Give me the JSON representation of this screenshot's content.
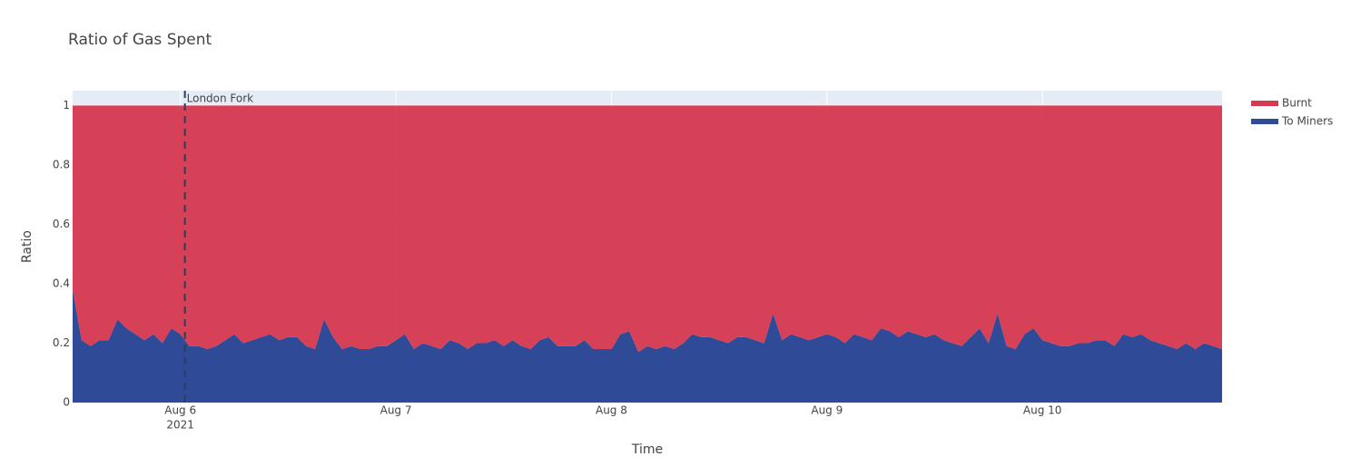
{
  "chart_data": {
    "type": "stacked_area",
    "title": "Ratio of Gas Spent",
    "xlabel": "Time",
    "ylabel": "Ratio",
    "x": [
      "2021-08-05 12:00",
      "2021-08-05 13:00",
      "2021-08-05 14:00",
      "2021-08-05 15:00",
      "2021-08-05 16:00",
      "2021-08-05 17:00",
      "2021-08-05 18:00",
      "2021-08-05 19:00",
      "2021-08-05 20:00",
      "2021-08-05 21:00",
      "2021-08-05 22:00",
      "2021-08-05 23:00",
      "2021-08-06 00:00",
      "2021-08-06 01:00",
      "2021-08-06 02:00",
      "2021-08-06 03:00",
      "2021-08-06 04:00",
      "2021-08-06 05:00",
      "2021-08-06 06:00",
      "2021-08-06 07:00",
      "2021-08-06 08:00",
      "2021-08-06 09:00",
      "2021-08-06 10:00",
      "2021-08-06 11:00",
      "2021-08-06 12:00",
      "2021-08-06 13:00",
      "2021-08-06 14:00",
      "2021-08-06 15:00",
      "2021-08-06 16:00",
      "2021-08-06 17:00",
      "2021-08-06 18:00",
      "2021-08-06 19:00",
      "2021-08-06 20:00",
      "2021-08-06 21:00",
      "2021-08-06 22:00",
      "2021-08-06 23:00",
      "2021-08-07 00:00",
      "2021-08-07 01:00",
      "2021-08-07 02:00",
      "2021-08-07 03:00",
      "2021-08-07 04:00",
      "2021-08-07 05:00",
      "2021-08-07 06:00",
      "2021-08-07 07:00",
      "2021-08-07 08:00",
      "2021-08-07 09:00",
      "2021-08-07 10:00",
      "2021-08-07 11:00",
      "2021-08-07 12:00",
      "2021-08-07 13:00",
      "2021-08-07 14:00",
      "2021-08-07 15:00",
      "2021-08-07 16:00",
      "2021-08-07 17:00",
      "2021-08-07 18:00",
      "2021-08-07 19:00",
      "2021-08-07 20:00",
      "2021-08-07 21:00",
      "2021-08-07 22:00",
      "2021-08-07 23:00",
      "2021-08-08 00:00",
      "2021-08-08 01:00",
      "2021-08-08 02:00",
      "2021-08-08 03:00",
      "2021-08-08 04:00",
      "2021-08-08 05:00",
      "2021-08-08 06:00",
      "2021-08-08 07:00",
      "2021-08-08 08:00",
      "2021-08-08 09:00",
      "2021-08-08 10:00",
      "2021-08-08 11:00",
      "2021-08-08 12:00",
      "2021-08-08 13:00",
      "2021-08-08 14:00",
      "2021-08-08 15:00",
      "2021-08-08 16:00",
      "2021-08-08 17:00",
      "2021-08-08 18:00",
      "2021-08-08 19:00",
      "2021-08-08 20:00",
      "2021-08-08 21:00",
      "2021-08-08 22:00",
      "2021-08-08 23:00",
      "2021-08-09 00:00",
      "2021-08-09 01:00",
      "2021-08-09 02:00",
      "2021-08-09 03:00",
      "2021-08-09 04:00",
      "2021-08-09 05:00",
      "2021-08-09 06:00",
      "2021-08-09 07:00",
      "2021-08-09 08:00",
      "2021-08-09 09:00",
      "2021-08-09 10:00",
      "2021-08-09 11:00",
      "2021-08-09 12:00",
      "2021-08-09 13:00",
      "2021-08-09 14:00",
      "2021-08-09 15:00",
      "2021-08-09 16:00",
      "2021-08-09 17:00",
      "2021-08-09 18:00",
      "2021-08-09 19:00",
      "2021-08-09 20:00",
      "2021-08-09 21:00",
      "2021-08-09 22:00",
      "2021-08-09 23:00",
      "2021-08-10 00:00",
      "2021-08-10 01:00",
      "2021-08-10 02:00",
      "2021-08-10 03:00",
      "2021-08-10 04:00",
      "2021-08-10 05:00",
      "2021-08-10 06:00",
      "2021-08-10 07:00",
      "2021-08-10 08:00",
      "2021-08-10 09:00",
      "2021-08-10 10:00",
      "2021-08-10 11:00",
      "2021-08-10 12:00",
      "2021-08-10 13:00",
      "2021-08-10 14:00",
      "2021-08-10 15:00",
      "2021-08-10 16:00",
      "2021-08-10 17:00",
      "2021-08-10 18:00",
      "2021-08-10 19:00",
      "2021-08-10 20:00"
    ],
    "series": [
      {
        "name": "Burnt",
        "color": "#d6384f",
        "values": [
          0.62,
          0.79,
          0.81,
          0.79,
          0.79,
          0.72,
          0.75,
          0.77,
          0.79,
          0.77,
          0.8,
          0.75,
          0.77,
          0.81,
          0.81,
          0.82,
          0.81,
          0.79,
          0.77,
          0.8,
          0.79,
          0.78,
          0.77,
          0.79,
          0.78,
          0.78,
          0.81,
          0.82,
          0.72,
          0.78,
          0.82,
          0.81,
          0.82,
          0.82,
          0.81,
          0.81,
          0.79,
          0.77,
          0.82,
          0.8,
          0.81,
          0.82,
          0.79,
          0.8,
          0.82,
          0.8,
          0.8,
          0.79,
          0.81,
          0.79,
          0.81,
          0.82,
          0.79,
          0.78,
          0.81,
          0.81,
          0.81,
          0.79,
          0.82,
          0.82,
          0.82,
          0.77,
          0.76,
          0.83,
          0.81,
          0.82,
          0.81,
          0.82,
          0.8,
          0.77,
          0.78,
          0.78,
          0.79,
          0.8,
          0.78,
          0.78,
          0.79,
          0.8,
          0.7,
          0.79,
          0.77,
          0.78,
          0.79,
          0.78,
          0.77,
          0.78,
          0.8,
          0.77,
          0.78,
          0.79,
          0.75,
          0.76,
          0.78,
          0.76,
          0.77,
          0.78,
          0.77,
          0.79,
          0.8,
          0.81,
          0.78,
          0.75,
          0.8,
          0.7,
          0.81,
          0.82,
          0.77,
          0.75,
          0.79,
          0.8,
          0.81,
          0.81,
          0.8,
          0.8,
          0.79,
          0.79,
          0.81,
          0.77,
          0.78,
          0.77,
          0.79,
          0.8,
          0.81,
          0.82,
          0.8,
          0.82,
          0.8,
          0.81,
          0.82
        ]
      },
      {
        "name": "To Miners",
        "color": "#2f4a96",
        "values": [
          0.38,
          0.21,
          0.19,
          0.21,
          0.21,
          0.28,
          0.25,
          0.23,
          0.21,
          0.23,
          0.2,
          0.25,
          0.23,
          0.19,
          0.19,
          0.18,
          0.19,
          0.21,
          0.23,
          0.2,
          0.21,
          0.22,
          0.23,
          0.21,
          0.22,
          0.22,
          0.19,
          0.18,
          0.28,
          0.22,
          0.18,
          0.19,
          0.18,
          0.18,
          0.19,
          0.19,
          0.21,
          0.23,
          0.18,
          0.2,
          0.19,
          0.18,
          0.21,
          0.2,
          0.18,
          0.2,
          0.2,
          0.21,
          0.19,
          0.21,
          0.19,
          0.18,
          0.21,
          0.22,
          0.19,
          0.19,
          0.19,
          0.21,
          0.18,
          0.18,
          0.18,
          0.23,
          0.24,
          0.17,
          0.19,
          0.18,
          0.19,
          0.18,
          0.2,
          0.23,
          0.22,
          0.22,
          0.21,
          0.2,
          0.22,
          0.22,
          0.21,
          0.2,
          0.3,
          0.21,
          0.23,
          0.22,
          0.21,
          0.22,
          0.23,
          0.22,
          0.2,
          0.23,
          0.22,
          0.21,
          0.25,
          0.24,
          0.22,
          0.24,
          0.23,
          0.22,
          0.23,
          0.21,
          0.2,
          0.19,
          0.22,
          0.25,
          0.2,
          0.3,
          0.19,
          0.18,
          0.23,
          0.25,
          0.21,
          0.2,
          0.19,
          0.19,
          0.2,
          0.2,
          0.21,
          0.21,
          0.19,
          0.23,
          0.22,
          0.23,
          0.21,
          0.2,
          0.19,
          0.18,
          0.2,
          0.18,
          0.2,
          0.19,
          0.18
        ]
      }
    ],
    "xlim": [
      "2021-08-05 12:00",
      "2021-08-10 20:00"
    ],
    "xticks": [
      {
        "value": "2021-08-06",
        "label": "Aug 6"
      },
      {
        "value": "2021-08-07",
        "label": "Aug 7"
      },
      {
        "value": "2021-08-08",
        "label": "Aug 8"
      },
      {
        "value": "2021-08-09",
        "label": "Aug 9"
      },
      {
        "value": "2021-08-10",
        "label": "Aug 10"
      }
    ],
    "xaxis_year": "2021",
    "ylim": [
      0,
      1.05
    ],
    "yticks": [
      0,
      0.2,
      0.4,
      0.6,
      0.8,
      1
    ],
    "grid": true,
    "legend": "right",
    "annotations": [
      {
        "text": "London Fork",
        "x": "2021-08-06 00:30"
      }
    ]
  }
}
